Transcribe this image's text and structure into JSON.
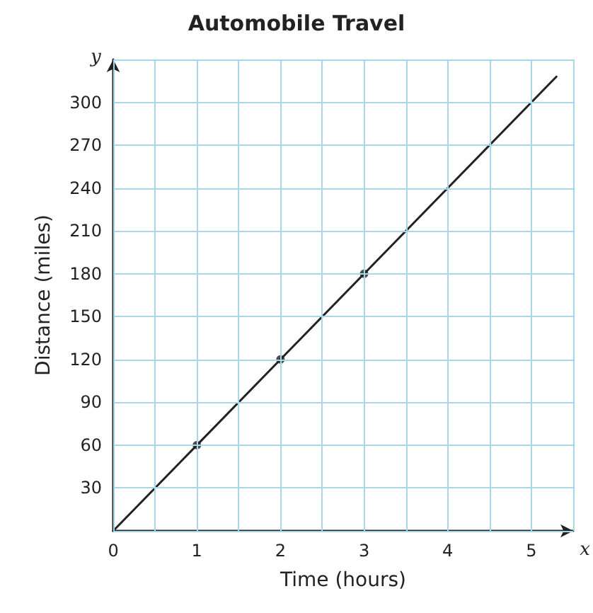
{
  "chart_data": {
    "type": "line",
    "title": "Automobile Travel",
    "xlabel": "Time (hours)",
    "ylabel": "Distance (miles)",
    "xlim": [
      0,
      5.5
    ],
    "ylim": [
      0,
      330
    ],
    "xticks": [
      0,
      {
        "value": 0.5,
        "label": null
      },
      1,
      {
        "value": 1.5,
        "label": null
      },
      2,
      {
        "value": 2.5,
        "label": null
      },
      3,
      {
        "value": 3.5,
        "label": null
      },
      4,
      {
        "value": 4.5,
        "label": null
      },
      5,
      {
        "value": 5.5,
        "label": null
      }
    ],
    "yticks": [
      {
        "value": 0,
        "label": null
      },
      30,
      60,
      90,
      120,
      150,
      180,
      210,
      240,
      270,
      300,
      {
        "value": 330,
        "label": null
      }
    ],
    "grid": true,
    "series": [
      {
        "color": "#222222",
        "x": [
          0,
          1,
          2,
          3,
          5.3
        ],
        "values": [
          0,
          60,
          120,
          180,
          318
        ],
        "marker": "none"
      },
      {
        "type": "scatter",
        "color": "#222222",
        "x": [
          1,
          2,
          3
        ],
        "values": [
          60,
          120,
          180
        ],
        "marker": "circle"
      }
    ],
    "annotations": [
      "x",
      "y"
    ]
  }
}
